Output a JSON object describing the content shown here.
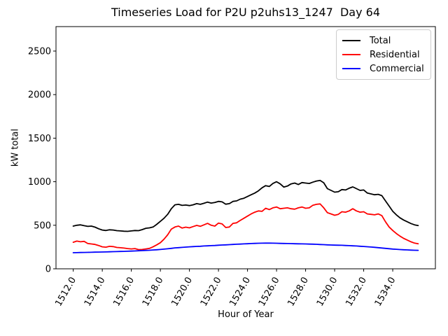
{
  "chart_data": {
    "type": "line",
    "title": "Timeseries Load for P2U p2uhs13_1247  Day 64",
    "xlabel": "Hour of Year",
    "ylabel": "kW total",
    "grid": false,
    "legend_position": "upper right",
    "xlim": [
      1510.8125,
      1536.9375
    ],
    "ylim": [
      0,
      2781
    ],
    "xticks": [
      1512,
      1514,
      1516,
      1518,
      1520,
      1522,
      1524,
      1526,
      1528,
      1530,
      1532,
      1534
    ],
    "xtick_labels": [
      "1512.0",
      "1514.0",
      "1516.0",
      "1518.0",
      "1520.0",
      "1522.0",
      "1524.0",
      "1526.0",
      "1528.0",
      "1530.0",
      "1532.0",
      "1534.0"
    ],
    "xtick_rotation_deg": 60,
    "yticks": [
      0,
      500,
      1000,
      1500,
      2000,
      2500
    ],
    "ytick_labels": [
      "0",
      "500",
      "1000",
      "1500",
      "2000",
      "2500"
    ],
    "x": [
      1512,
      1512.25,
      1512.5,
      1512.75,
      1513,
      1513.25,
      1513.5,
      1513.75,
      1514,
      1514.25,
      1514.5,
      1514.75,
      1515,
      1515.25,
      1515.5,
      1515.75,
      1516,
      1516.25,
      1516.5,
      1516.75,
      1517,
      1517.25,
      1517.5,
      1517.75,
      1518,
      1518.25,
      1518.5,
      1518.75,
      1519,
      1519.25,
      1519.5,
      1519.75,
      1520,
      1520.25,
      1520.5,
      1520.75,
      1521,
      1521.25,
      1521.5,
      1521.75,
      1522,
      1522.25,
      1522.5,
      1522.75,
      1523,
      1523.25,
      1523.5,
      1523.75,
      1524,
      1524.25,
      1524.5,
      1524.75,
      1525,
      1525.25,
      1525.5,
      1525.75,
      1526,
      1526.25,
      1526.5,
      1526.75,
      1527,
      1527.25,
      1527.5,
      1527.75,
      1528,
      1528.25,
      1528.5,
      1528.75,
      1529,
      1529.25,
      1529.5,
      1529.75,
      1530,
      1530.25,
      1530.5,
      1530.75,
      1531,
      1531.25,
      1531.5,
      1531.75,
      1532,
      1532.25,
      1532.5,
      1532.75,
      1533,
      1533.25,
      1533.5,
      1533.75,
      1534,
      1534.25,
      1534.5,
      1534.75,
      1535,
      1535.25,
      1535.5,
      1535.75
    ],
    "series": [
      {
        "name": "Total",
        "color": "#000000",
        "values": [
          490,
          500,
          505,
          495,
          487,
          490,
          478,
          460,
          445,
          440,
          448,
          445,
          438,
          435,
          432,
          430,
          435,
          440,
          438,
          450,
          465,
          470,
          480,
          510,
          545,
          580,
          625,
          690,
          735,
          740,
          728,
          732,
          726,
          735,
          748,
          740,
          752,
          766,
          755,
          762,
          774,
          768,
          742,
          748,
          774,
          780,
          800,
          810,
          830,
          850,
          870,
          895,
          930,
          955,
          945,
          980,
          1000,
          975,
          938,
          950,
          975,
          985,
          968,
          990,
          985,
          980,
          995,
          1008,
          1015,
          988,
          920,
          900,
          880,
          885,
          910,
          905,
          925,
          940,
          920,
          900,
          905,
          870,
          860,
          850,
          855,
          840,
          780,
          720,
          660,
          620,
          585,
          560,
          540,
          520,
          505,
          497
        ]
      },
      {
        "name": "Residential",
        "color": "#ff0000",
        "values": [
          305,
          318,
          310,
          315,
          290,
          285,
          280,
          268,
          252,
          248,
          258,
          255,
          245,
          242,
          238,
          232,
          228,
          232,
          220,
          222,
          228,
          235,
          252,
          275,
          300,
          340,
          390,
          455,
          480,
          490,
          468,
          478,
          470,
          485,
          498,
          488,
          505,
          522,
          500,
          490,
          525,
          515,
          474,
          480,
          522,
          528,
          555,
          580,
          605,
          630,
          650,
          665,
          660,
          695,
          680,
          700,
          710,
          690,
          695,
          700,
          690,
          685,
          700,
          710,
          695,
          700,
          730,
          740,
          745,
          700,
          645,
          630,
          615,
          625,
          655,
          650,
          665,
          690,
          665,
          650,
          655,
          630,
          625,
          620,
          630,
          610,
          540,
          480,
          440,
          405,
          375,
          350,
          330,
          310,
          295,
          288
        ]
      },
      {
        "name": "Commercial",
        "color": "#0000ff",
        "values": [
          185,
          186,
          187,
          188,
          189,
          190,
          191,
          192,
          193,
          194,
          195,
          197,
          198,
          199,
          200,
          202,
          203,
          205,
          207,
          209,
          211,
          213,
          216,
          219,
          222,
          226,
          230,
          235,
          240,
          243,
          246,
          249,
          252,
          255,
          257,
          259,
          262,
          264,
          266,
          268,
          271,
          273,
          275,
          277,
          280,
          282,
          284,
          286,
          288,
          290,
          292,
          293,
          294,
          295,
          295,
          294,
          293,
          292,
          291,
          290,
          289,
          288,
          287,
          286,
          285,
          284,
          283,
          281,
          279,
          277,
          275,
          273,
          272,
          271,
          270,
          268,
          266,
          264,
          262,
          259,
          256,
          253,
          250,
          247,
          243,
          239,
          235,
          231,
          227,
          224,
          221,
          219,
          217,
          215,
          213,
          212
        ]
      }
    ]
  }
}
